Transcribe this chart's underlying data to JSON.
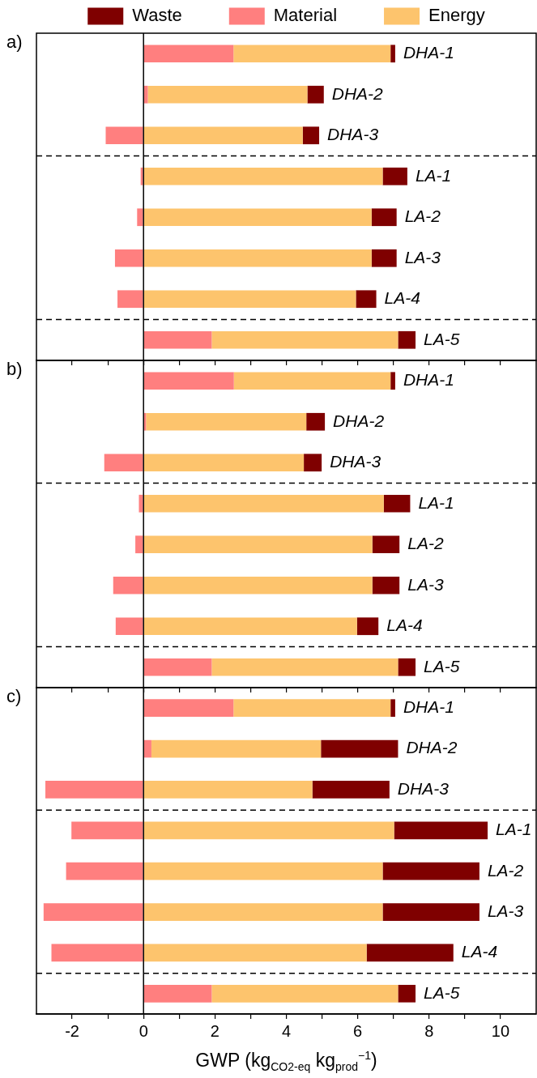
{
  "chart_data": [
    {
      "type": "bar",
      "title": "a)",
      "orientation": "horizontal",
      "stacked": true,
      "legend": "top",
      "tick_labels": "y",
      "categories": [
        "DHA-1",
        "DHA-2",
        "DHA-3",
        "LA-1",
        "LA-2",
        "LA-3",
        "LA-4",
        "LA-5"
      ],
      "series": [
        {
          "name": "Material",
          "color": "#ff7f7f",
          "values": [
            2.52,
            0.12,
            -1.06,
            -0.08,
            -0.18,
            -0.8,
            -0.73,
            1.91
          ]
        },
        {
          "name": "Energy",
          "color": "#fdc46d",
          "values": [
            4.4,
            4.47,
            4.46,
            6.7,
            6.39,
            6.39,
            5.95,
            5.22
          ]
        },
        {
          "name": "Waste",
          "color": "#7f0000",
          "values": [
            0.13,
            0.46,
            0.46,
            0.69,
            0.7,
            0.7,
            0.57,
            0.49
          ]
        }
      ],
      "xlim": [
        -3,
        11
      ],
      "xticks": [
        -2,
        {
          "value": -1,
          "label": null
        },
        0,
        {
          "value": 1,
          "label": null
        },
        2,
        {
          "value": 3,
          "label": null
        },
        4,
        {
          "value": 5,
          "label": null
        },
        6,
        {
          "value": 7,
          "label": null
        },
        8,
        {
          "value": 9,
          "label": null
        },
        10
      ],
      "ref_lines": [
        {
          "axis": "x",
          "value": 0,
          "color": "#000000",
          "line_style": "solid"
        }
      ]
    },
    {
      "type": "bar",
      "title": "b)",
      "orientation": "horizontal",
      "stacked": true,
      "tick_labels": "y",
      "categories": [
        "DHA-1",
        "DHA-2",
        "DHA-3",
        "LA-1",
        "LA-2",
        "LA-3",
        "LA-4",
        "LA-5"
      ],
      "series": [
        {
          "color": "#ff7f7f",
          "values": [
            2.53,
            0.07,
            -1.1,
            -0.13,
            -0.23,
            -0.85,
            -0.78,
            1.91
          ]
        },
        {
          "color": "#fdc46d",
          "values": [
            4.39,
            4.49,
            4.49,
            6.73,
            6.41,
            6.41,
            5.98,
            5.22
          ]
        },
        {
          "color": "#7f0000",
          "values": [
            0.13,
            0.52,
            0.5,
            0.74,
            0.76,
            0.76,
            0.6,
            0.49
          ]
        }
      ],
      "xlim": [
        -3,
        11
      ],
      "xticks": [
        -2,
        {
          "value": -1,
          "label": null
        },
        0,
        {
          "value": 1,
          "label": null
        },
        2,
        {
          "value": 3,
          "label": null
        },
        4,
        {
          "value": 5,
          "label": null
        },
        6,
        {
          "value": 7,
          "label": null
        },
        8,
        {
          "value": 9,
          "label": null
        },
        10
      ],
      "ref_lines": [
        {
          "axis": "x",
          "value": 0,
          "color": "#000000",
          "line_style": "solid"
        }
      ]
    },
    {
      "type": "bar",
      "title": "c)",
      "orientation": "horizontal",
      "stacked": true,
      "xlabel": "GWP (kg$_{CO2-eq}$ kg$_{prod}$$^{−1}$)",
      "categories": [
        "DHA-1",
        "DHA-2",
        "DHA-3",
        "LA-1",
        "LA-2",
        "LA-3",
        "LA-4",
        "LA-5"
      ],
      "series": [
        {
          "color": "#ff7f7f",
          "values": [
            2.52,
            0.22,
            -2.75,
            -2.02,
            -2.17,
            -2.8,
            -2.58,
            1.91
          ]
        },
        {
          "color": "#fdc46d",
          "values": [
            4.4,
            4.75,
            4.73,
            7.02,
            6.7,
            6.7,
            6.25,
            5.22
          ]
        },
        {
          "color": "#7f0000",
          "values": [
            0.13,
            2.16,
            2.16,
            2.62,
            2.71,
            2.71,
            2.43,
            0.49
          ]
        }
      ],
      "xlim": [
        -3,
        11
      ],
      "xticks": [
        -2,
        {
          "value": -1,
          "label": null
        },
        0,
        {
          "value": 1,
          "label": null
        },
        2,
        {
          "value": 3,
          "label": null
        },
        4,
        {
          "value": 5,
          "label": null
        },
        6,
        {
          "value": 7,
          "label": null
        },
        8,
        {
          "value": 9,
          "label": null
        },
        10
      ],
      "ref_lines": [
        {
          "axis": "x",
          "value": 0,
          "color": "#000000",
          "line_style": "solid"
        }
      ]
    }
  ]
}
